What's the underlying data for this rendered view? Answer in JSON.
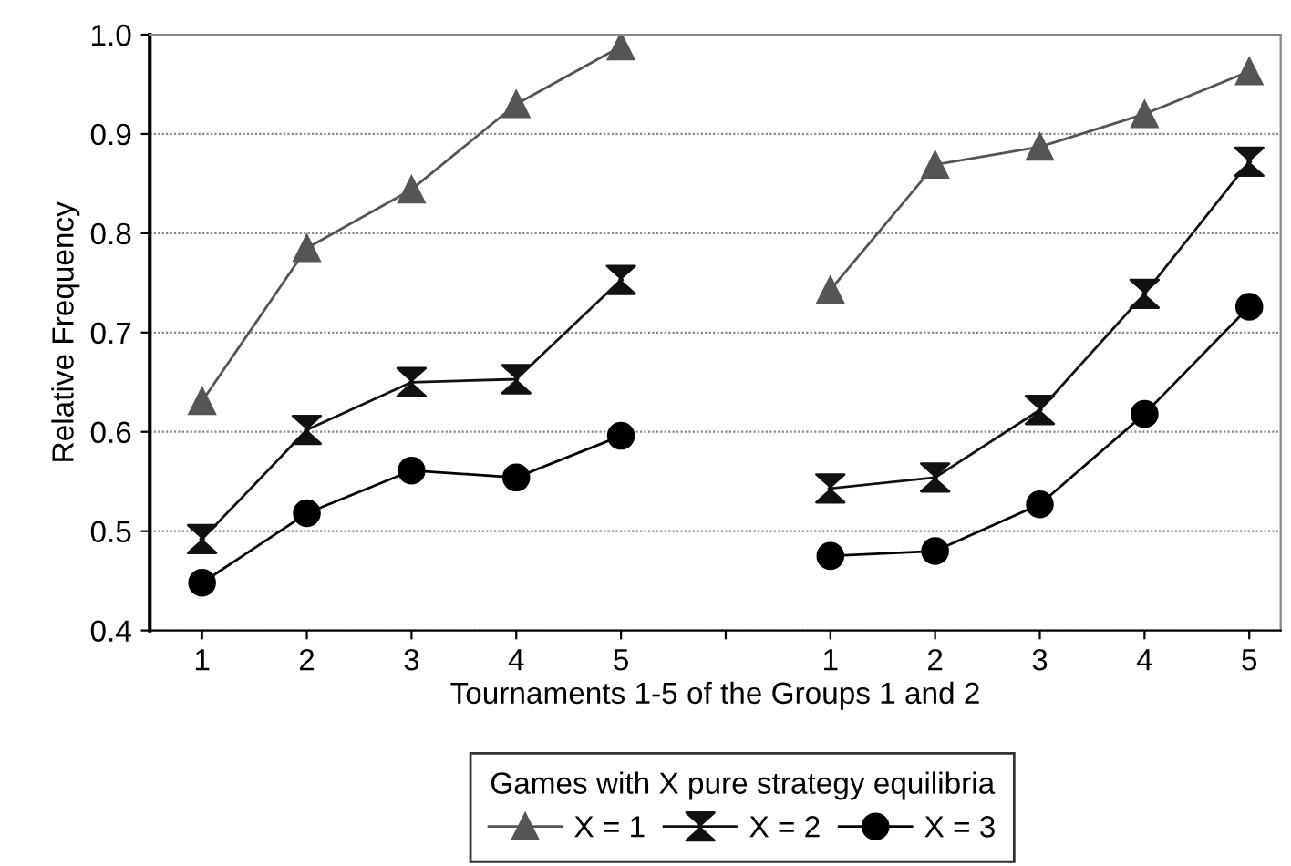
{
  "chart_data": {
    "type": "line",
    "xlabel": "Tournaments 1-5 of the Groups 1 and 2",
    "ylabel": "Relative Frequency",
    "legend_title": "Games with X pure strategy equilibria",
    "categories": [
      "1",
      "2",
      "3",
      "4",
      "5",
      null,
      "1",
      "2",
      "3",
      "4",
      "5"
    ],
    "series": [
      {
        "name": "X = 1",
        "color": "#555555",
        "marker": "triangle",
        "values": [
          0.631,
          0.785,
          0.844,
          0.93,
          0.988,
          null,
          0.743,
          0.869,
          0.887,
          0.92,
          0.963
        ]
      },
      {
        "name": "X = 2",
        "color": "#111111",
        "marker": "cross",
        "values": [
          0.492,
          0.602,
          0.65,
          0.653,
          0.753,
          null,
          0.543,
          0.554,
          0.622,
          0.739,
          0.872
        ]
      },
      {
        "name": "X = 3",
        "color": "#000000",
        "marker": "circle",
        "values": [
          0.448,
          0.518,
          0.561,
          0.554,
          0.596,
          null,
          0.475,
          0.48,
          0.527,
          0.618,
          0.726
        ]
      }
    ],
    "ylim": [
      0.4,
      1.0
    ],
    "yticks": [
      {
        "value": 0.4,
        "label": "0.4"
      },
      {
        "value": 0.5,
        "label": "0.5"
      },
      {
        "value": 0.6,
        "label": "0.6"
      },
      {
        "value": 0.7,
        "label": "0.7"
      },
      {
        "value": 0.8,
        "label": "0.8"
      },
      {
        "value": 0.9,
        "label": "0.9"
      },
      {
        "value": 1.0,
        "label": "1.0"
      }
    ],
    "grid": "y",
    "legend": "bottom",
    "line_style": "solid"
  }
}
